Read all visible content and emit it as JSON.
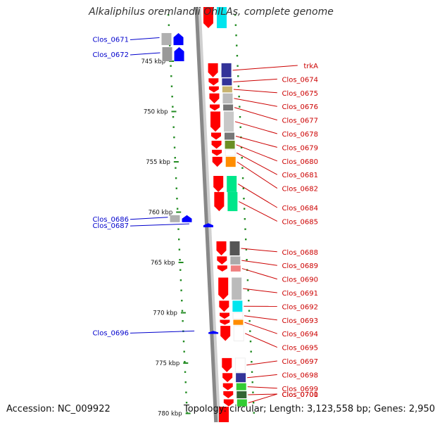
{
  "title": "Alkaliphilus oremlandii OhILAs, complete genome",
  "footer": {
    "accession": "Accession: NC_009922",
    "stats": "Topology: circular; Length: 3,123,558 bp; Genes: 2,950"
  },
  "colors": {
    "backbone": "#888888",
    "tick": "#228B22",
    "forward_label": "#0000cc",
    "reverse_label": "#cc0000",
    "forward_gene": "#0000ff",
    "reverse_gene": "#ff0000"
  },
  "scale": {
    "unit": "kbp",
    "ticks": [
      {
        "pos": 745,
        "label": "745 kbp"
      },
      {
        "pos": 750,
        "label": "750 kbp"
      },
      {
        "pos": 755,
        "label": "755 kbp"
      },
      {
        "pos": 760,
        "label": "760 kbp"
      },
      {
        "pos": 765,
        "label": "765 kbp"
      },
      {
        "pos": 770,
        "label": "770 kbp"
      },
      {
        "pos": 775,
        "label": "775 kbp"
      },
      {
        "pos": 780,
        "label": "780 kbp"
      }
    ]
  },
  "forward_genes": [
    {
      "label": "Clos_0671",
      "start": 742.2,
      "end": 743.4
    },
    {
      "label": "Clos_0672",
      "start": 743.6,
      "end": 745.0
    },
    {
      "label": "Clos_0686",
      "start": 760.3,
      "end": 761.0
    },
    {
      "label": "Clos_0687",
      "start": 761.1,
      "end": 761.5
    },
    {
      "label": "Clos_0696",
      "start": 771.8,
      "end": 772.1
    }
  ],
  "reverse_genes": [
    {
      "label": "trkA",
      "start": 745.2,
      "end": 746.6,
      "cog_color": "#333399"
    },
    {
      "label": "Clos_0674",
      "start": 746.7,
      "end": 747.4,
      "cog_color": "#333399"
    },
    {
      "label": "Clos_0675",
      "start": 747.5,
      "end": 748.1,
      "cog_color": "#c8b46e"
    },
    {
      "label": "Clos_0676",
      "start": 748.2,
      "end": 749.2,
      "cog_color": "#bbbbbb"
    },
    {
      "label": "Clos_0677",
      "start": 749.3,
      "end": 749.9,
      "cog_color": "#777777"
    },
    {
      "label": "Clos_0678",
      "start": 750.0,
      "end": 752.0,
      "cog_color": "#c8c8c8"
    },
    {
      "label": "Clos_0679",
      "start": 752.1,
      "end": 752.8,
      "cog_color": "#777777"
    },
    {
      "label": "Clos_0680",
      "start": 752.9,
      "end": 753.7,
      "cog_color": "#6b8e23"
    },
    {
      "label": "Clos_0681",
      "start": 753.8,
      "end": 754.4,
      "cog_color": "#ffffff"
    },
    {
      "label": "Clos_0682",
      "start": 754.5,
      "end": 755.5,
      "cog_color": "#ff8c00"
    },
    {
      "label": "Clos_0684",
      "start": 756.4,
      "end": 758.0,
      "cog_color": "#00e68a"
    },
    {
      "label": "Clos_0685",
      "start": 758.0,
      "end": 759.9,
      "cog_color": "#00e68a"
    },
    {
      "label": "Clos_0688",
      "start": 762.9,
      "end": 764.3,
      "cog_color": "#555555"
    },
    {
      "label": "Clos_0689",
      "start": 764.4,
      "end": 765.2,
      "cog_color": "#aaaaaa"
    },
    {
      "label": "Clos_0690",
      "start": 765.3,
      "end": 765.9,
      "cog_color": "#f08080"
    },
    {
      "label": "Clos_0691",
      "start": 766.5,
      "end": 768.7,
      "cog_color": "#bbbbbb"
    },
    {
      "label": "Clos_0692",
      "start": 768.8,
      "end": 769.9,
      "cog_color": "#00e5ee"
    },
    {
      "label": "Clos_0693",
      "start": 770.0,
      "end": 770.6,
      "cog_color": "#ffffff"
    },
    {
      "label": "Clos_0694",
      "start": 770.7,
      "end": 771.2,
      "cog_color": "#ff8c00"
    },
    {
      "label": "Clos_0695",
      "start": 771.3,
      "end": 772.8,
      "cog_color": "#ffffff"
    },
    {
      "label": "Clos_0697",
      "start": 774.5,
      "end": 775.9,
      "cog_color": "#ffffff"
    },
    {
      "label": "Clos_0698",
      "start": 776.0,
      "end": 776.9,
      "cog_color": "#333399"
    },
    {
      "label": "Clos_0699",
      "start": 777.0,
      "end": 777.7,
      "cog_color": "#33cc33"
    },
    {
      "label": "Clos_0700",
      "start": 777.8,
      "end": 778.5,
      "cog_color": "#336633"
    },
    {
      "label": "Clos_0701",
      "start": 778.6,
      "end": 779.3,
      "cog_color": "#33cc33"
    }
  ]
}
